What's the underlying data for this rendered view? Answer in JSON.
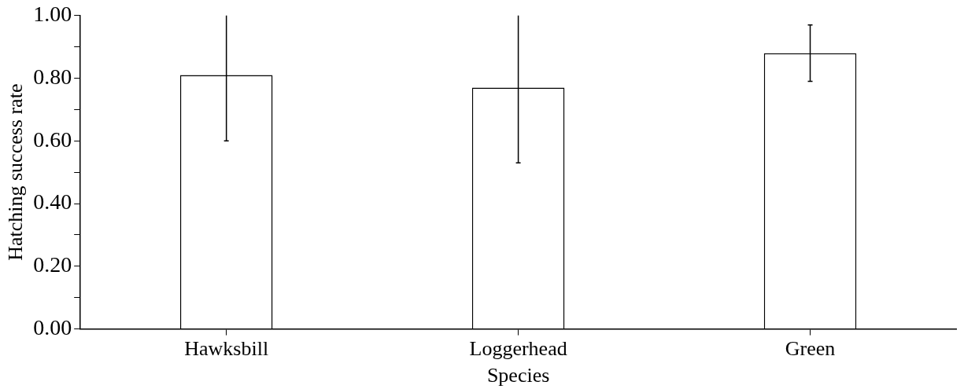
{
  "chart_data": {
    "type": "bar",
    "xlabel": "Species",
    "ylabel": "Hatching success rate",
    "categories": [
      "Hawksbill",
      "Loggerhead",
      "Green"
    ],
    "values": [
      0.81,
      0.77,
      0.88
    ],
    "errors": [
      [
        0.6,
        1.0
      ],
      [
        0.53,
        1.0
      ],
      [
        0.79,
        0.97
      ]
    ],
    "color": "#ffffff",
    "ylim": [
      0,
      1
    ],
    "yticks": [
      {
        "value": 0,
        "label": "0.00"
      },
      {
        "value": 0.1,
        "label": null
      },
      {
        "value": 0.2,
        "label": "0.20"
      },
      {
        "value": 0.3,
        "label": null
      },
      {
        "value": 0.4,
        "label": "0.40"
      },
      {
        "value": 0.5,
        "label": null
      },
      {
        "value": 0.6,
        "label": "0.60"
      },
      {
        "value": 0.7,
        "label": null
      },
      {
        "value": 0.8,
        "label": "0.80"
      },
      {
        "value": 0.9,
        "label": null
      },
      {
        "value": 1,
        "label": "1.00"
      }
    ],
    "grid": false,
    "legend": false
  }
}
